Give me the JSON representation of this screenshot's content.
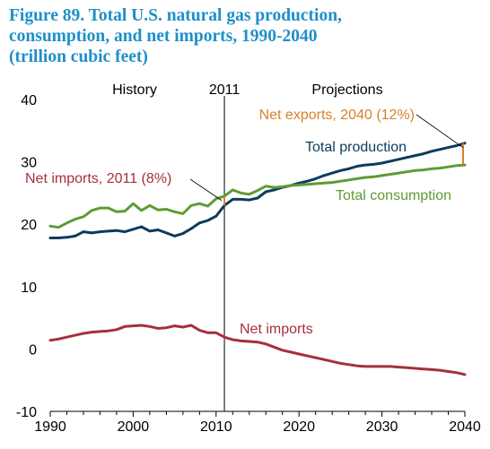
{
  "figure": {
    "title_lines": [
      "Figure 89. Total U.S. natural gas production,",
      "consumption, and net imports, 1990-2040",
      "(trillion cubic feet)"
    ]
  },
  "chart_data": {
    "type": "line",
    "title": "Figure 89. Total U.S. natural gas production, consumption, and net imports, 1990-2040 (trillion cubic feet)",
    "xlabel": "",
    "ylabel": "",
    "xlim": [
      1990,
      2040
    ],
    "ylim": [
      -10,
      40
    ],
    "x_ticks": [
      1990,
      2000,
      2010,
      2020,
      2030,
      2040
    ],
    "y_ticks": [
      -10,
      0,
      10,
      20,
      30,
      40
    ],
    "grid": false,
    "divider": {
      "x": 2011,
      "label": "2011",
      "left_label": "History",
      "right_label": "Projections"
    },
    "series": [
      {
        "name": "Total production",
        "color": "#0d3c5c",
        "x": [
          1990,
          1991,
          1992,
          1993,
          1994,
          1995,
          1996,
          1997,
          1998,
          1999,
          2000,
          2001,
          2002,
          2003,
          2004,
          2005,
          2006,
          2007,
          2008,
          2009,
          2010,
          2011,
          2012,
          2013,
          2014,
          2015,
          2016,
          2017,
          2018,
          2019,
          2020,
          2021,
          2022,
          2023,
          2024,
          2025,
          2026,
          2027,
          2028,
          2029,
          2030,
          2031,
          2032,
          2033,
          2034,
          2035,
          2036,
          2037,
          2038,
          2039,
          2040
        ],
        "values": [
          17.8,
          17.8,
          17.9,
          18.1,
          18.8,
          18.6,
          18.8,
          18.9,
          19.0,
          18.8,
          19.2,
          19.6,
          18.9,
          19.1,
          18.6,
          18.1,
          18.5,
          19.3,
          20.2,
          20.6,
          21.3,
          23.0,
          24.0,
          24.0,
          23.9,
          24.2,
          25.2,
          25.5,
          25.9,
          26.2,
          26.6,
          26.9,
          27.3,
          27.8,
          28.2,
          28.6,
          28.9,
          29.3,
          29.5,
          29.6,
          29.8,
          30.1,
          30.4,
          30.7,
          31.0,
          31.3,
          31.7,
          32.0,
          32.3,
          32.6,
          33.0
        ]
      },
      {
        "name": "Total consumption",
        "color": "#5f9b35",
        "x": [
          1990,
          1991,
          1992,
          1993,
          1994,
          1995,
          1996,
          1997,
          1998,
          1999,
          2000,
          2001,
          2002,
          2003,
          2004,
          2005,
          2006,
          2007,
          2008,
          2009,
          2010,
          2011,
          2012,
          2013,
          2014,
          2015,
          2016,
          2017,
          2018,
          2019,
          2020,
          2021,
          2022,
          2023,
          2024,
          2025,
          2026,
          2027,
          2028,
          2029,
          2030,
          2031,
          2032,
          2033,
          2034,
          2035,
          2036,
          2037,
          2038,
          2039,
          2040
        ],
        "values": [
          19.7,
          19.5,
          20.2,
          20.8,
          21.2,
          22.2,
          22.6,
          22.6,
          22.0,
          22.1,
          23.3,
          22.2,
          23.0,
          22.3,
          22.4,
          22.0,
          21.7,
          23.0,
          23.3,
          22.9,
          24.1,
          24.5,
          25.5,
          25.0,
          24.8,
          25.4,
          26.1,
          25.9,
          26.0,
          26.2,
          26.3,
          26.4,
          26.5,
          26.6,
          26.7,
          26.9,
          27.1,
          27.3,
          27.5,
          27.6,
          27.8,
          28.0,
          28.2,
          28.4,
          28.6,
          28.7,
          28.9,
          29.0,
          29.2,
          29.4,
          29.5
        ]
      },
      {
        "name": "Net imports",
        "color": "#a5303c",
        "x": [
          1990,
          1991,
          1992,
          1993,
          1994,
          1995,
          1996,
          1997,
          1998,
          1999,
          2000,
          2001,
          2002,
          2003,
          2004,
          2005,
          2006,
          2007,
          2008,
          2009,
          2010,
          2011,
          2012,
          2013,
          2014,
          2015,
          2016,
          2017,
          2018,
          2019,
          2020,
          2021,
          2022,
          2023,
          2024,
          2025,
          2026,
          2027,
          2028,
          2029,
          2030,
          2031,
          2032,
          2033,
          2034,
          2035,
          2036,
          2037,
          2038,
          2039,
          2040
        ],
        "values": [
          1.4,
          1.6,
          1.9,
          2.2,
          2.5,
          2.7,
          2.8,
          2.9,
          3.1,
          3.6,
          3.7,
          3.8,
          3.6,
          3.3,
          3.4,
          3.7,
          3.5,
          3.8,
          3.0,
          2.6,
          2.6,
          1.9,
          1.5,
          1.3,
          1.2,
          1.1,
          0.8,
          0.3,
          -0.2,
          -0.5,
          -0.8,
          -1.1,
          -1.4,
          -1.7,
          -2.0,
          -2.3,
          -2.5,
          -2.7,
          -2.8,
          -2.8,
          -2.8,
          -2.8,
          -2.9,
          -3.0,
          -3.1,
          -3.2,
          -3.3,
          -3.4,
          -3.6,
          -3.8,
          -4.1
        ]
      }
    ],
    "annotations": [
      {
        "text": "History",
        "color": "#000000"
      },
      {
        "text": "Projections",
        "color": "#000000"
      },
      {
        "text": "Net exports, 2040 (12%)",
        "color": "#d9802b"
      },
      {
        "text": "Total production",
        "color": "#0d3c5c"
      },
      {
        "text": "Net imports, 2011 (8%)",
        "color": "#a5303c"
      },
      {
        "text": "Total consumption",
        "color": "#5f9b35"
      },
      {
        "text": "Net imports",
        "color": "#a5303c"
      }
    ],
    "net_exports_2040_bracket": {
      "x": 2040,
      "from": 29.5,
      "to": 33.0,
      "color": "#d9802b"
    },
    "net_imports_2011_marker": {
      "x": 2011,
      "from": 23.0,
      "to": 24.5,
      "color": "#d9802b"
    }
  }
}
